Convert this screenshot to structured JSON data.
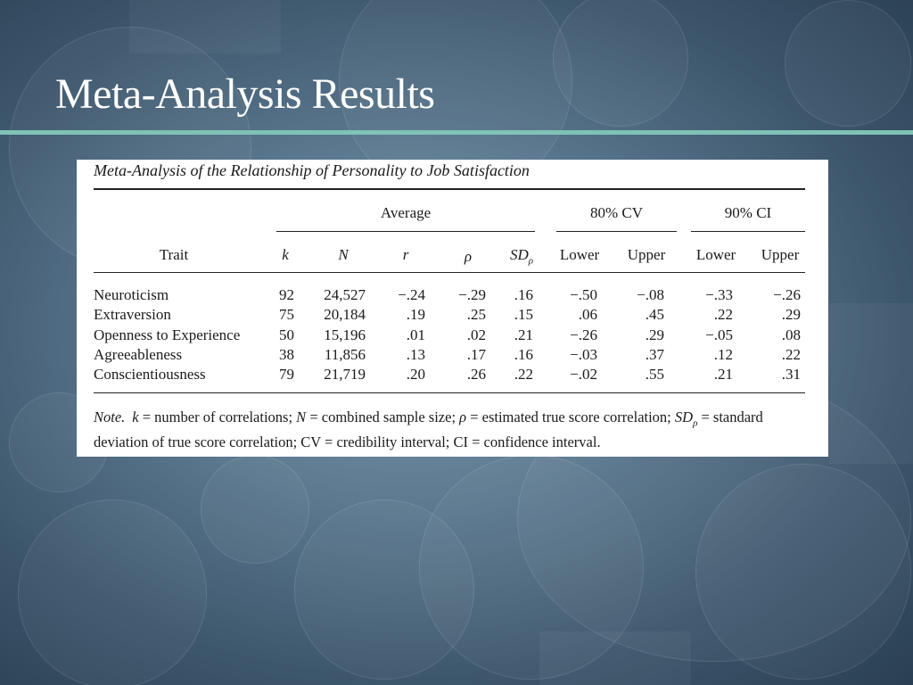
{
  "slide": {
    "title": "Meta-Analysis Results"
  },
  "table": {
    "caption": "Meta-Analysis of the Relationship of Personality to Job Satisfaction",
    "group_headers": {
      "average": "Average",
      "cv": "80% CV",
      "ci": "90% CI"
    },
    "columns": {
      "trait": "Trait",
      "k": "k",
      "n": "N",
      "r": "r",
      "rho": "ρ",
      "sd": "SD",
      "sd_sub": "ρ",
      "cv_lower": "Lower",
      "cv_upper": "Upper",
      "ci_lower": "Lower",
      "ci_upper": "Upper"
    },
    "rows": [
      {
        "trait": "Neuroticism",
        "k": "92",
        "n": "24,527",
        "r": "−.24",
        "rho": "−.29",
        "sd": ".16",
        "cv_lower": "−.50",
        "cv_upper": "−.08",
        "ci_lower": "−.33",
        "ci_upper": "−.26"
      },
      {
        "trait": "Extraversion",
        "k": "75",
        "n": "20,184",
        "r": ".19",
        "rho": ".25",
        "sd": ".15",
        "cv_lower": ".06",
        "cv_upper": ".45",
        "ci_lower": ".22",
        "ci_upper": ".29"
      },
      {
        "trait": "Openness to Experience",
        "k": "50",
        "n": "15,196",
        "r": ".01",
        "rho": ".02",
        "sd": ".21",
        "cv_lower": "−.26",
        "cv_upper": ".29",
        "ci_lower": "−.05",
        "ci_upper": ".08"
      },
      {
        "trait": "Agreeableness",
        "k": "38",
        "n": "11,856",
        "r": ".13",
        "rho": ".17",
        "sd": ".16",
        "cv_lower": "−.03",
        "cv_upper": ".37",
        "ci_lower": ".12",
        "ci_upper": ".22"
      },
      {
        "trait": "Conscientiousness",
        "k": "79",
        "n": "21,719",
        "r": ".20",
        "rho": ".26",
        "sd": ".22",
        "cv_lower": "−.02",
        "cv_upper": ".55",
        "ci_lower": ".21",
        "ci_upper": ".31"
      }
    ],
    "note": {
      "label": "Note.",
      "k_sym": "k",
      "k_def": " = number of correlations; ",
      "n_sym": "N",
      "n_def": " = combined sample size; ",
      "rho_sym": "ρ",
      "rho_def": " = estimated true score correlation; ",
      "sd_sym": "SD",
      "sd_sub": "ρ",
      "sd_def": " = standard deviation of true score correlation; CV = credibility interval; CI = confidence interval."
    }
  },
  "colors": {
    "title_rule": "#7ec3b6",
    "title_text": "#ffffff",
    "panel": "#ffffff"
  }
}
